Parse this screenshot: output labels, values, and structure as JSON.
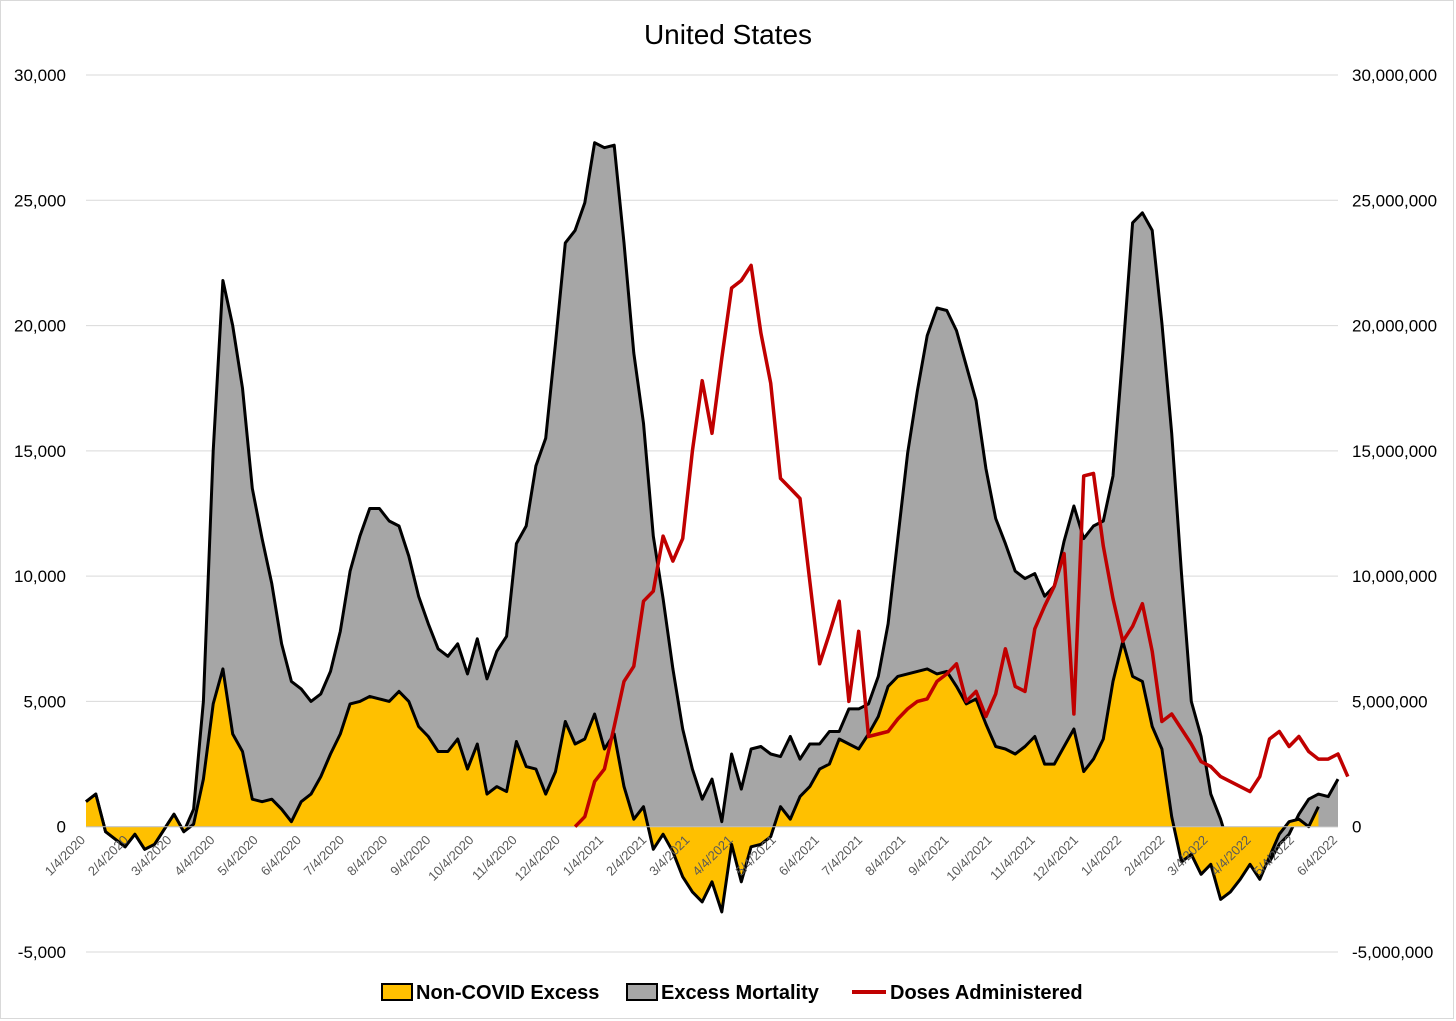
{
  "chart_data": {
    "type": "area",
    "title": "United States",
    "x_tick_labels": [
      "1/4/2020",
      "2/4/2020",
      "3/4/2020",
      "4/4/2020",
      "5/4/2020",
      "6/4/2020",
      "7/4/2020",
      "8/4/2020",
      "9/4/2020",
      "10/4/2020",
      "11/4/2020",
      "12/4/2020",
      "1/4/2021",
      "2/4/2021",
      "3/4/2021",
      "4/4/2021",
      "5/4/2021",
      "6/4/2021",
      "7/4/2021",
      "8/4/2021",
      "9/4/2021",
      "10/4/2021",
      "11/4/2021",
      "12/4/2021",
      "1/4/2022",
      "2/4/2022",
      "3/4/2022",
      "4/4/2022",
      "5/4/2022",
      "6/4/2022"
    ],
    "x_start": "1/4/2020",
    "x_interval": "weekly",
    "y_left": {
      "ticks": [
        "-5,000",
        "0",
        "5,000",
        "10,000",
        "15,000",
        "20,000",
        "25,000",
        "30,000"
      ],
      "ylim": [
        -5000,
        30000
      ]
    },
    "y_right": {
      "ticks": [
        "-5,000,000",
        "0",
        "5,000,000",
        "10,000,000",
        "15,000,000",
        "20,000,000",
        "25,000,000",
        "30,000,000"
      ],
      "ylim": [
        -5000000,
        30000000
      ]
    },
    "grid": true,
    "legend_position": "bottom",
    "series": [
      {
        "name": "Excess Mortality",
        "kind": "area",
        "axis": "left",
        "color": "#a6a6a6",
        "edge_color": "#000000",
        "values": [
          1000,
          1300,
          -200,
          -500,
          -800,
          -300,
          -900,
          -700,
          -100,
          500,
          -200,
          700,
          5000,
          15000,
          21800,
          20000,
          17500,
          13500,
          11500,
          9700,
          7300,
          5800,
          5500,
          5000,
          5300,
          6200,
          7800,
          10200,
          11600,
          12700,
          12700,
          12200,
          12000,
          10800,
          9200,
          8100,
          7100,
          6800,
          7300,
          6100,
          7500,
          5900,
          7000,
          7600,
          11300,
          12000,
          14400,
          15500,
          19300,
          23300,
          23800,
          24900,
          27300,
          27100,
          27200,
          23300,
          18900,
          16100,
          11600,
          9100,
          6300,
          3900,
          2300,
          1100,
          1900,
          200,
          2900,
          1500,
          3100,
          3200,
          2900,
          2800,
          3600,
          2700,
          3300,
          3300,
          3800,
          3800,
          4700,
          4700,
          4900,
          6000,
          8100,
          11500,
          14900,
          17400,
          19600,
          20700,
          20600,
          19800,
          18400,
          17000,
          14300,
          12300,
          11300,
          10200,
          9900,
          10100,
          9200,
          9600,
          11400,
          12800,
          11500,
          12000,
          12200,
          14000,
          18900,
          24100,
          24500,
          23800,
          20100,
          15700,
          10100,
          5000,
          3600,
          1300,
          300,
          -1000,
          -1400,
          -1300,
          -1000,
          -1400,
          -700,
          -300,
          500,
          1100,
          1300,
          1200,
          1900
        ]
      },
      {
        "name": "Non-COVID Excess",
        "kind": "area",
        "axis": "left",
        "color": "#ffc000",
        "edge_color": "#000000",
        "values": [
          1000,
          1300,
          -200,
          -500,
          -800,
          -300,
          -900,
          -700,
          -100,
          500,
          -200,
          100,
          1900,
          4900,
          6300,
          3700,
          3000,
          1100,
          1000,
          1100,
          700,
          200,
          1000,
          1300,
          2000,
          2900,
          3700,
          4900,
          5000,
          5200,
          5100,
          5000,
          5400,
          5000,
          4000,
          3600,
          3000,
          3000,
          3500,
          2300,
          3300,
          1300,
          1600,
          1400,
          3400,
          2400,
          2300,
          1300,
          2200,
          4200,
          3300,
          3500,
          4500,
          3100,
          3700,
          1600,
          300,
          800,
          -900,
          -300,
          -1000,
          -2000,
          -2600,
          -3000,
          -2200,
          -3400,
          -700,
          -2200,
          -800,
          -700,
          -400,
          800,
          300,
          1200,
          1600,
          2300,
          2500,
          3500,
          3300,
          3100,
          3700,
          4400,
          5600,
          6000,
          6100,
          6200,
          6300,
          6100,
          6200,
          5600,
          4900,
          5100,
          4100,
          3200,
          3100,
          2900,
          3200,
          3600,
          2500,
          2500,
          3200,
          3900,
          2200,
          2700,
          3500,
          5800,
          7400,
          6000,
          5800,
          4000,
          3100,
          400,
          -1400,
          -1100,
          -1900,
          -1500,
          -2900,
          -2600,
          -2100,
          -1500,
          -2100,
          -1200,
          -300,
          200,
          300,
          0,
          800
        ]
      },
      {
        "name": "Doses Administered",
        "kind": "line",
        "axis": "right",
        "color": "#c00000",
        "start_tick": "12/4/2020",
        "values": [
          0,
          400000,
          1800000,
          2300000,
          4000000,
          5800000,
          6400000,
          9000000,
          9400000,
          11600000,
          10600000,
          11500000,
          15000000,
          17800000,
          15700000,
          18700000,
          21500000,
          21800000,
          22400000,
          19700000,
          17700000,
          13900000,
          13500000,
          13100000,
          9800000,
          6500000,
          7700000,
          9000000,
          5000000,
          7800000,
          3600000,
          3700000,
          3800000,
          4300000,
          4700000,
          5000000,
          5100000,
          5800000,
          6100000,
          6500000,
          5000000,
          5400000,
          4400000,
          5300000,
          7100000,
          5600000,
          5400000,
          7900000,
          8800000,
          9600000,
          10900000,
          4500000,
          14000000,
          14100000,
          11200000,
          9100000,
          7400000,
          8000000,
          8900000,
          7000000,
          4200000,
          4500000,
          3900000,
          3300000,
          2600000,
          2400000,
          2000000,
          1800000,
          1600000,
          1400000,
          2000000,
          3500000,
          3800000,
          3200000,
          3600000,
          3000000,
          2700000,
          2700000,
          2900000,
          2000000
        ]
      }
    ]
  }
}
